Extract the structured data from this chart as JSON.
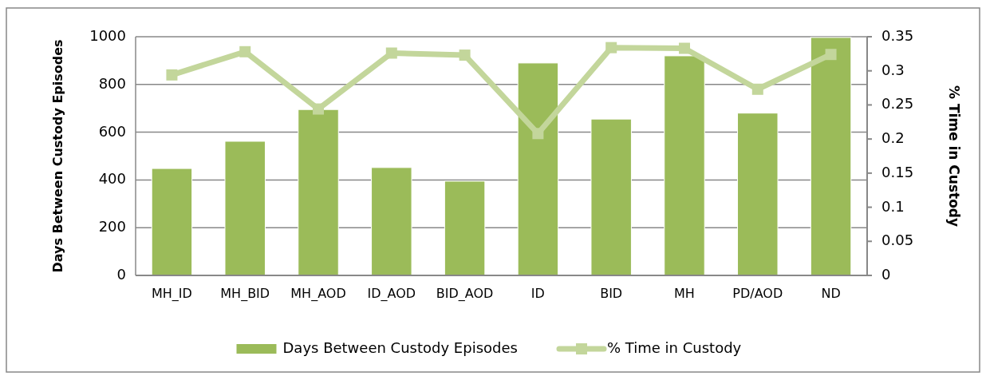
{
  "chart_data": {
    "type": "bar",
    "categories": [
      "MH_ID",
      "MH_BID",
      "MH_AOD",
      "ID_AOD",
      "BID_AOD",
      "ID",
      "BID",
      "MH",
      "PD/AOD",
      "ND"
    ],
    "series": [
      {
        "name": "Days Between Custody Episodes",
        "color": "#9bbb59",
        "values": [
          448,
          562,
          695,
          452,
          395,
          890,
          655,
          920,
          680,
          997
        ]
      },
      {
        "name": "% Time in Custody",
        "type": "line",
        "axis": "y2",
        "color": "#c3d69b",
        "marker": "square",
        "values": [
          0.294,
          0.328,
          0.244,
          0.326,
          0.323,
          0.208,
          0.334,
          0.333,
          0.273,
          0.324
        ]
      }
    ],
    "ylabel": "Days Between Custody Episodes",
    "y2label": "% Time in Custody",
    "ylim": [
      0,
      1000
    ],
    "yticks": [
      0,
      200,
      400,
      600,
      800,
      1000
    ],
    "y2lim": [
      0,
      0.35
    ],
    "y2ticks": [
      0,
      0.05,
      0.1,
      0.15,
      0.2,
      0.25,
      0.3,
      0.35
    ],
    "grid": "y",
    "legend": "bottom"
  }
}
